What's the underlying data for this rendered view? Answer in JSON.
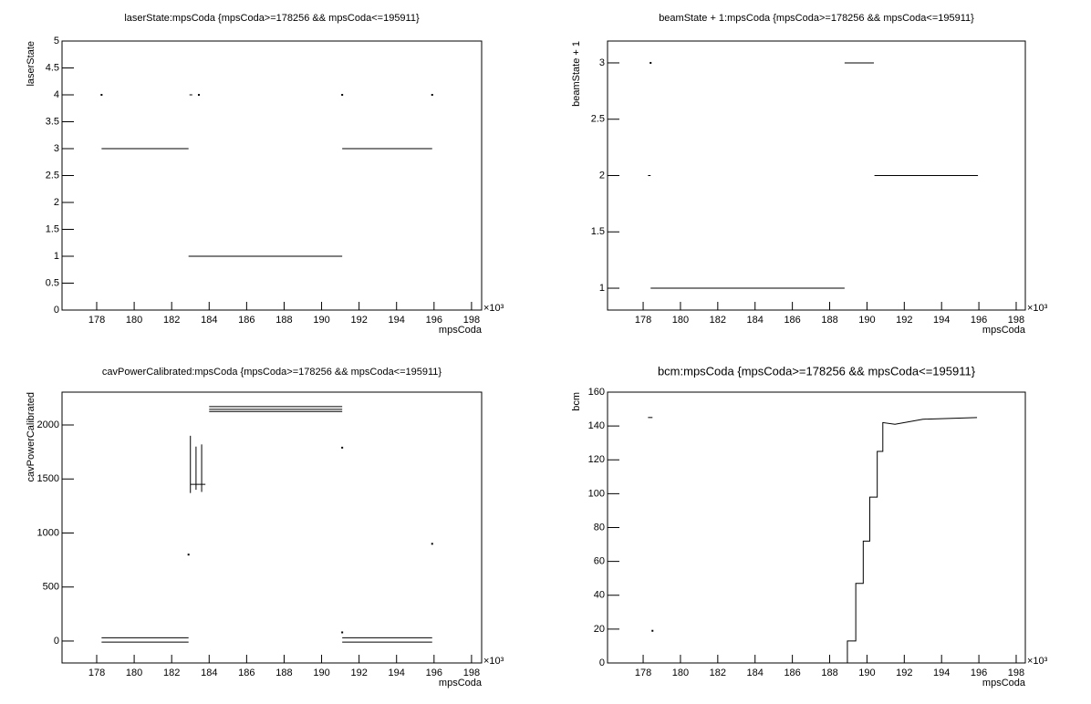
{
  "chart_data": [
    {
      "type": "line",
      "title": "laserState:mpsCoda {mpsCoda>=178256 && mpsCoda<=195911}",
      "x_label": "mpsCoda",
      "y_label": "laserState",
      "x_multiplier": "×10³",
      "xlim": [
        176.15,
        198.54
      ],
      "xticks": [
        178,
        180,
        182,
        184,
        186,
        188,
        190,
        192,
        194,
        196,
        198
      ],
      "ylim": [
        0,
        5
      ],
      "yticks": [
        0,
        0.5,
        1,
        1.5,
        2,
        2.5,
        3,
        3.5,
        4,
        4.5,
        5
      ],
      "series": [
        {
          "color": "#000000",
          "x": [
            178.26,
            182.9,
            null,
            182.9,
            191.1,
            null,
            191.1,
            195.9,
            null,
            178.26,
            null,
            182.95,
            183.1,
            null,
            183.45,
            null,
            191.1,
            null,
            195.9
          ],
          "values": [
            3,
            3,
            null,
            1,
            1,
            null,
            3,
            3,
            null,
            4,
            null,
            4,
            4,
            null,
            4,
            null,
            4,
            null,
            4
          ]
        }
      ]
    },
    {
      "type": "line",
      "title": "beamState + 1:mpsCoda {mpsCoda>=178256 && mpsCoda<=195911}",
      "x_label": "mpsCoda",
      "y_label": "beamState + 1",
      "x_multiplier": "×10³",
      "xlim": [
        176.09,
        198.49
      ],
      "xticks": [
        178,
        180,
        182,
        184,
        186,
        188,
        190,
        192,
        194,
        196,
        198
      ],
      "ylim": [
        0.806,
        3.194
      ],
      "yticks": [
        1,
        1.5,
        2,
        2.5,
        3
      ],
      "series": [
        {
          "color": "#000000",
          "x": [
            178.26,
            178.4,
            null,
            178.4,
            null,
            178.4,
            188.8,
            null,
            188.8,
            190.37,
            null,
            190.4,
            195.95
          ],
          "values": [
            2,
            2,
            null,
            3,
            null,
            1,
            1,
            null,
            3,
            3,
            null,
            2,
            2
          ]
        }
      ]
    },
    {
      "type": "line",
      "title": "cavPowerCalibrated:mpsCoda {mpsCoda>=178256 && mpsCoda<=195911}",
      "x_label": "mpsCoda",
      "y_label": "cavPowerCalibrated",
      "x_multiplier": "×10³",
      "xlim": [
        176.15,
        198.54
      ],
      "xticks": [
        178,
        180,
        182,
        184,
        186,
        188,
        190,
        192,
        194,
        196,
        198
      ],
      "ylim": [
        -203,
        2304
      ],
      "yticks": [
        0,
        500,
        1000,
        1500,
        2000
      ],
      "series": [
        {
          "color": "#000000",
          "x": [
            178.26,
            182.9,
            null,
            178.26,
            182.9,
            null,
            191.1,
            195.9,
            null,
            191.1,
            195.9,
            null,
            184,
            191.1,
            null,
            184,
            191.1,
            null,
            184,
            191.1,
            null,
            183.0,
            183.0,
            null,
            183.3,
            183.3,
            null,
            183.6,
            183.6,
            null,
            183.0,
            183.8,
            null,
            182.9,
            null,
            191.1,
            null,
            195.9,
            null,
            191.1
          ],
          "values": [
            30,
            30,
            null,
            -10,
            -10,
            null,
            30,
            30,
            null,
            -10,
            -10,
            null,
            2125,
            2125,
            null,
            2145,
            2145,
            null,
            2170,
            2170,
            null,
            1370,
            1900,
            null,
            1400,
            1800,
            null,
            1380,
            1820,
            null,
            1450,
            1450,
            null,
            800,
            null,
            1790,
            null,
            900,
            null,
            80
          ]
        }
      ]
    },
    {
      "type": "line",
      "title": "bcm:mpsCoda {mpsCoda>=178256 && mpsCoda<=195911}",
      "x_label": "mpsCoda",
      "y_label": "bcm",
      "x_multiplier": "×10³",
      "xlim": [
        176.09,
        198.49
      ],
      "xticks": [
        178,
        180,
        182,
        184,
        186,
        188,
        190,
        192,
        194,
        196,
        198
      ],
      "ylim": [
        0,
        160
      ],
      "yticks": [
        0,
        20,
        40,
        60,
        80,
        100,
        120,
        140,
        160
      ],
      "series": [
        {
          "color": "#000000",
          "x": [
            178.26,
            178.5,
            null,
            178.5,
            null,
            188.95,
            188.95,
            189.4,
            189.4,
            189.8,
            189.8,
            190.15,
            190.15,
            190.55,
            190.55,
            190.85,
            190.85,
            191.5,
            193,
            195.9
          ],
          "values": [
            145,
            145,
            null,
            19,
            null,
            0,
            13,
            13,
            47,
            47,
            72,
            72,
            98,
            98,
            125,
            125,
            142,
            141,
            144,
            145
          ]
        }
      ]
    }
  ]
}
